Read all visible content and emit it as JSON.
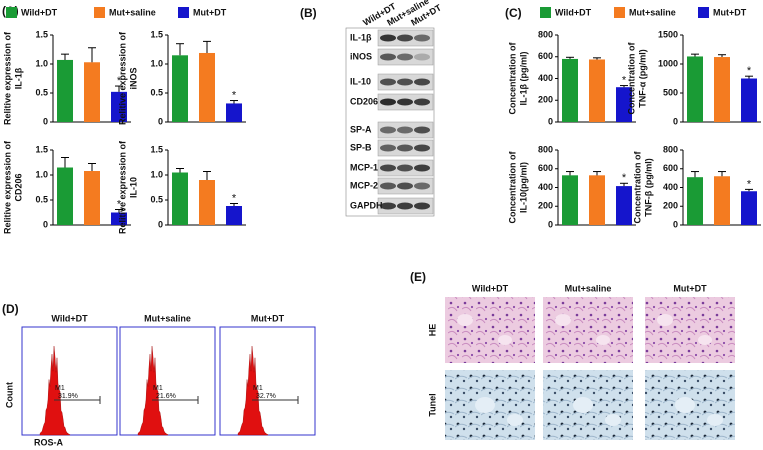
{
  "panels": {
    "A": "(A)",
    "B": "(B)",
    "C": "(C)",
    "D": "(D)",
    "E": "(E)"
  },
  "legend": [
    {
      "name": "Wild+DT",
      "color": "#1a9b35"
    },
    {
      "name": "Mut+saline",
      "color": "#f47b20"
    },
    {
      "name": "Mut+DT",
      "color": "#1515cc"
    }
  ],
  "chart_data": [
    {
      "type": "bar",
      "ylabel": [
        "Relitive expression of",
        "IL-1β"
      ],
      "values": [
        1.07,
        1.03,
        0.52
      ],
      "errors": [
        0.1,
        0.25,
        0.1
      ],
      "annotations": [
        null,
        null,
        "*"
      ],
      "ylim": [
        0,
        1.5
      ],
      "yticks": [
        0,
        0.5,
        {
          "value": 1,
          "label": "1.0"
        },
        1.5
      ]
    },
    {
      "type": "bar",
      "ylabel": [
        "Relitive expression of",
        "iNOS"
      ],
      "values": [
        1.15,
        1.19,
        0.32
      ],
      "errors": [
        0.2,
        0.2,
        0.05
      ],
      "annotations": [
        null,
        null,
        "*"
      ],
      "ylim": [
        0,
        1.5
      ],
      "yticks": [
        0,
        0.5,
        {
          "value": 1,
          "label": "1.0"
        },
        1.5
      ]
    },
    {
      "type": "bar",
      "ylabel": [
        "Relitive expression of",
        "CD206"
      ],
      "values": [
        1.15,
        1.08,
        0.25
      ],
      "errors": [
        0.2,
        0.15,
        0.06
      ],
      "annotations": [
        null,
        null,
        "*"
      ],
      "ylim": [
        0,
        1.5
      ],
      "yticks": [
        0,
        0.5,
        {
          "value": 1,
          "label": "1.0"
        },
        1.5
      ]
    },
    {
      "type": "bar",
      "ylabel": [
        "Relitive expression of",
        "IL-10"
      ],
      "values": [
        1.05,
        0.9,
        0.38
      ],
      "errors": [
        0.08,
        0.17,
        0.05
      ],
      "annotations": [
        null,
        null,
        "*"
      ],
      "ylim": [
        0,
        1.5
      ],
      "yticks": [
        0,
        0.5,
        {
          "value": 1,
          "label": "1.0"
        },
        1.5
      ]
    },
    {
      "type": "bar",
      "ylabel": [
        "Concentration of",
        "IL-1β (pg/ml)"
      ],
      "values": [
        580,
        575,
        320
      ],
      "errors": [
        15,
        15,
        15
      ],
      "annotations": [
        null,
        null,
        "*"
      ],
      "ylim": [
        0,
        800
      ],
      "yticks": [
        0,
        200,
        400,
        600,
        800
      ]
    },
    {
      "type": "bar",
      "ylabel": [
        "Concentration of",
        "TNF-α (pg/ml)"
      ],
      "values": [
        1130,
        1120,
        750
      ],
      "errors": [
        40,
        40,
        40
      ],
      "annotations": [
        null,
        null,
        "*"
      ],
      "ylim": [
        0,
        1500
      ],
      "yticks": [
        0,
        500,
        1000,
        1500
      ]
    },
    {
      "type": "bar",
      "ylabel": [
        "Concentration of",
        "IL-10(pg/ml)"
      ],
      "values": [
        530,
        530,
        415
      ],
      "errors": [
        40,
        40,
        30
      ],
      "annotations": [
        null,
        null,
        "*"
      ],
      "ylim": [
        0,
        800
      ],
      "yticks": [
        0,
        200,
        400,
        600,
        800
      ]
    },
    {
      "type": "bar",
      "ylabel": [
        "Concentration of",
        "TNF-β (pg/ml)"
      ],
      "values": [
        510,
        520,
        360
      ],
      "errors": [
        60,
        50,
        20
      ],
      "annotations": [
        null,
        null,
        "*"
      ],
      "ylim": [
        0,
        800
      ],
      "yticks": [
        0,
        200,
        400,
        600,
        800
      ]
    }
  ],
  "blot": {
    "lanes": [
      "Wild+DT",
      "Mut+saline",
      "Mut+DT"
    ],
    "bands": [
      "IL-1β",
      "iNOS",
      "IL-10",
      "CD206",
      "SP-A",
      "SP-B",
      "MCP-1",
      "MCP-2",
      "GAPDH"
    ]
  },
  "flow": {
    "groups": [
      "Wild+DT",
      "Mut+saline",
      "Mut+DT"
    ],
    "ylabel": "Count",
    "xlabel": "ROS-A",
    "gate": "M1",
    "percentages": [
      "31.9%",
      "21.6%",
      "32.7%"
    ]
  },
  "histology": {
    "groups": [
      "Wild+DT",
      "Mut+saline",
      "Mut+DT"
    ],
    "stains": [
      "HE",
      "Tunel"
    ]
  }
}
